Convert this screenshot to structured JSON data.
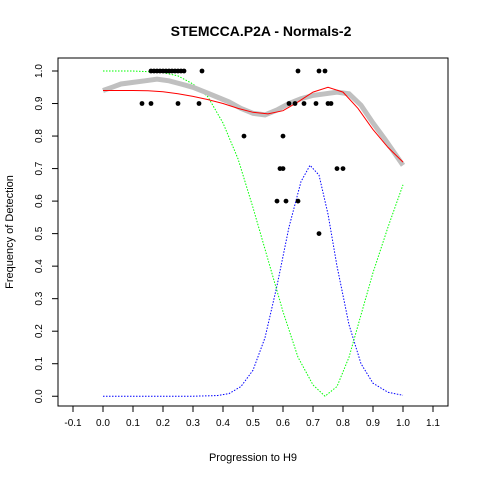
{
  "chart_data": {
    "type": "scatter",
    "title": "STEMCCA.P2A - Normals-2",
    "xlabel": "Progression to H9",
    "ylabel": "Frequency of Detection",
    "xlim": [
      -0.15,
      1.15
    ],
    "ylim": [
      -0.03,
      1.04
    ],
    "x_ticks": [
      -0.1,
      0.0,
      0.1,
      0.2,
      0.3,
      0.4,
      0.5,
      0.6,
      0.7,
      0.8,
      0.9,
      1.0,
      1.1
    ],
    "x_tick_labels": [
      "-0.1",
      "0.0",
      "0.1",
      "0.2",
      "0.3",
      "0.4",
      "0.5",
      "0.6",
      "0.7",
      "0.8",
      "0.9",
      "1.0",
      "1.1"
    ],
    "y_ticks": [
      0.0,
      0.1,
      0.2,
      0.3,
      0.4,
      0.5,
      0.6,
      0.7,
      0.8,
      0.9,
      1.0
    ],
    "y_tick_labels": [
      "0.0",
      "0.1",
      "0.2",
      "0.3",
      "0.4",
      "0.5",
      "0.6",
      "0.7",
      "0.8",
      "0.9",
      "1.0"
    ],
    "grid": false,
    "colors": {
      "points": "#000000",
      "smooth": "#c0c0c0",
      "fit": "#ff0000",
      "green_curve": "#00ff00",
      "blue_curve": "#0000ff"
    },
    "points": [
      {
        "x": 0.13,
        "y": 0.9
      },
      {
        "x": 0.16,
        "y": 0.9
      },
      {
        "x": 0.16,
        "y": 1.0
      },
      {
        "x": 0.17,
        "y": 1.0
      },
      {
        "x": 0.18,
        "y": 1.0
      },
      {
        "x": 0.19,
        "y": 1.0
      },
      {
        "x": 0.2,
        "y": 1.0
      },
      {
        "x": 0.21,
        "y": 1.0
      },
      {
        "x": 0.22,
        "y": 1.0
      },
      {
        "x": 0.23,
        "y": 1.0
      },
      {
        "x": 0.24,
        "y": 1.0
      },
      {
        "x": 0.25,
        "y": 1.0
      },
      {
        "x": 0.26,
        "y": 1.0
      },
      {
        "x": 0.27,
        "y": 1.0
      },
      {
        "x": 0.33,
        "y": 1.0
      },
      {
        "x": 0.25,
        "y": 0.9
      },
      {
        "x": 0.32,
        "y": 0.9
      },
      {
        "x": 0.47,
        "y": 0.8
      },
      {
        "x": 0.58,
        "y": 0.6
      },
      {
        "x": 0.59,
        "y": 0.7
      },
      {
        "x": 0.6,
        "y": 0.7
      },
      {
        "x": 0.6,
        "y": 0.8
      },
      {
        "x": 0.61,
        "y": 0.6
      },
      {
        "x": 0.62,
        "y": 0.9
      },
      {
        "x": 0.64,
        "y": 0.9
      },
      {
        "x": 0.65,
        "y": 1.0
      },
      {
        "x": 0.65,
        "y": 0.6
      },
      {
        "x": 0.67,
        "y": 0.9
      },
      {
        "x": 0.71,
        "y": 0.9
      },
      {
        "x": 0.72,
        "y": 1.0
      },
      {
        "x": 0.74,
        "y": 1.0
      },
      {
        "x": 0.72,
        "y": 0.5
      },
      {
        "x": 0.75,
        "y": 0.9
      },
      {
        "x": 0.76,
        "y": 0.9
      },
      {
        "x": 0.78,
        "y": 0.7
      },
      {
        "x": 0.8,
        "y": 0.7
      }
    ],
    "smooth_curve": [
      {
        "x": 0.0,
        "y": 0.94
      },
      {
        "x": 0.03,
        "y": 0.95
      },
      {
        "x": 0.06,
        "y": 0.96
      },
      {
        "x": 0.1,
        "y": 0.965
      },
      {
        "x": 0.14,
        "y": 0.97
      },
      {
        "x": 0.18,
        "y": 0.975
      },
      {
        "x": 0.22,
        "y": 0.97
      },
      {
        "x": 0.26,
        "y": 0.96
      },
      {
        "x": 0.3,
        "y": 0.95
      },
      {
        "x": 0.34,
        "y": 0.935
      },
      {
        "x": 0.38,
        "y": 0.92
      },
      {
        "x": 0.42,
        "y": 0.905
      },
      {
        "x": 0.46,
        "y": 0.885
      },
      {
        "x": 0.5,
        "y": 0.87
      },
      {
        "x": 0.54,
        "y": 0.865
      },
      {
        "x": 0.58,
        "y": 0.88
      },
      {
        "x": 0.62,
        "y": 0.9
      },
      {
        "x": 0.66,
        "y": 0.915
      },
      {
        "x": 0.7,
        "y": 0.925
      },
      {
        "x": 0.74,
        "y": 0.93
      },
      {
        "x": 0.78,
        "y": 0.935
      },
      {
        "x": 0.82,
        "y": 0.93
      },
      {
        "x": 0.86,
        "y": 0.895
      },
      {
        "x": 0.9,
        "y": 0.84
      },
      {
        "x": 0.94,
        "y": 0.79
      },
      {
        "x": 0.97,
        "y": 0.75
      },
      {
        "x": 1.0,
        "y": 0.71
      }
    ],
    "fit_curve": [
      {
        "x": 0.0,
        "y": 0.94
      },
      {
        "x": 0.05,
        "y": 0.94
      },
      {
        "x": 0.1,
        "y": 0.94
      },
      {
        "x": 0.15,
        "y": 0.939
      },
      {
        "x": 0.2,
        "y": 0.936
      },
      {
        "x": 0.25,
        "y": 0.93
      },
      {
        "x": 0.3,
        "y": 0.922
      },
      {
        "x": 0.35,
        "y": 0.912
      },
      {
        "x": 0.4,
        "y": 0.9
      },
      {
        "x": 0.45,
        "y": 0.885
      },
      {
        "x": 0.5,
        "y": 0.873
      },
      {
        "x": 0.55,
        "y": 0.868
      },
      {
        "x": 0.6,
        "y": 0.878
      },
      {
        "x": 0.65,
        "y": 0.905
      },
      {
        "x": 0.7,
        "y": 0.935
      },
      {
        "x": 0.75,
        "y": 0.95
      },
      {
        "x": 0.8,
        "y": 0.935
      },
      {
        "x": 0.85,
        "y": 0.885
      },
      {
        "x": 0.9,
        "y": 0.82
      },
      {
        "x": 0.95,
        "y": 0.765
      },
      {
        "x": 1.0,
        "y": 0.72
      }
    ],
    "green_curve": [
      {
        "x": 0.0,
        "y": 1.0
      },
      {
        "x": 0.05,
        "y": 1.0
      },
      {
        "x": 0.1,
        "y": 1.0
      },
      {
        "x": 0.15,
        "y": 0.998
      },
      {
        "x": 0.2,
        "y": 0.995
      },
      {
        "x": 0.25,
        "y": 0.985
      },
      {
        "x": 0.3,
        "y": 0.96
      },
      {
        "x": 0.35,
        "y": 0.92
      },
      {
        "x": 0.4,
        "y": 0.84
      },
      {
        "x": 0.45,
        "y": 0.73
      },
      {
        "x": 0.5,
        "y": 0.58
      },
      {
        "x": 0.55,
        "y": 0.42
      },
      {
        "x": 0.6,
        "y": 0.26
      },
      {
        "x": 0.65,
        "y": 0.12
      },
      {
        "x": 0.7,
        "y": 0.035
      },
      {
        "x": 0.74,
        "y": 0.0
      },
      {
        "x": 0.78,
        "y": 0.03
      },
      {
        "x": 0.82,
        "y": 0.12
      },
      {
        "x": 0.86,
        "y": 0.25
      },
      {
        "x": 0.9,
        "y": 0.38
      },
      {
        "x": 0.95,
        "y": 0.52
      },
      {
        "x": 1.0,
        "y": 0.65
      }
    ],
    "blue_curve": [
      {
        "x": 0.0,
        "y": 0.0
      },
      {
        "x": 0.1,
        "y": 0.0
      },
      {
        "x": 0.2,
        "y": 0.0
      },
      {
        "x": 0.3,
        "y": 0.0
      },
      {
        "x": 0.38,
        "y": 0.002
      },
      {
        "x": 0.42,
        "y": 0.008
      },
      {
        "x": 0.46,
        "y": 0.03
      },
      {
        "x": 0.5,
        "y": 0.08
      },
      {
        "x": 0.54,
        "y": 0.18
      },
      {
        "x": 0.58,
        "y": 0.34
      },
      {
        "x": 0.62,
        "y": 0.52
      },
      {
        "x": 0.66,
        "y": 0.66
      },
      {
        "x": 0.69,
        "y": 0.71
      },
      {
        "x": 0.72,
        "y": 0.68
      },
      {
        "x": 0.75,
        "y": 0.56
      },
      {
        "x": 0.78,
        "y": 0.4
      },
      {
        "x": 0.82,
        "y": 0.22
      },
      {
        "x": 0.86,
        "y": 0.1
      },
      {
        "x": 0.9,
        "y": 0.04
      },
      {
        "x": 0.95,
        "y": 0.012
      },
      {
        "x": 1.0,
        "y": 0.003
      }
    ]
  }
}
